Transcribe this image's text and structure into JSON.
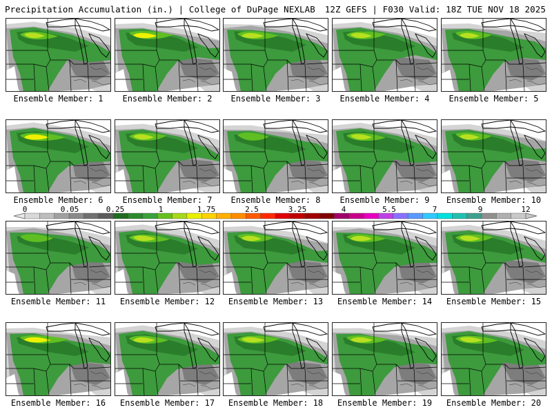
{
  "header": {
    "title": "Precipitation Accumulation (in.) | College of DuPage NEXLAB",
    "run_info": "12Z GEFS | F030 Valid: 18Z TUE NOV 18 2025"
  },
  "members": [
    {
      "label": "Ensemble Member: 1",
      "intensity": 0.55
    },
    {
      "label": "Ensemble Member: 2",
      "intensity": 0.75
    },
    {
      "label": "Ensemble Member: 3",
      "intensity": 0.65
    },
    {
      "label": "Ensemble Member: 4",
      "intensity": 0.6
    },
    {
      "label": "Ensemble Member: 5",
      "intensity": 0.5
    },
    {
      "label": "Ensemble Member: 6",
      "intensity": 0.8
    },
    {
      "label": "Ensemble Member: 7",
      "intensity": 0.55
    },
    {
      "label": "Ensemble Member: 8",
      "intensity": 0.35
    },
    {
      "label": "Ensemble Member: 9",
      "intensity": 0.6
    },
    {
      "label": "Ensemble Member: 10",
      "intensity": 0.5
    },
    {
      "label": "Ensemble Member: 11",
      "intensity": 0.4
    },
    {
      "label": "Ensemble Member: 12",
      "intensity": 0.65
    },
    {
      "label": "Ensemble Member: 13",
      "intensity": 0.5
    },
    {
      "label": "Ensemble Member: 14",
      "intensity": 0.6
    },
    {
      "label": "Ensemble Member: 15",
      "intensity": 0.55
    },
    {
      "label": "Ensemble Member: 16",
      "intensity": 0.9
    },
    {
      "label": "Ensemble Member: 17",
      "intensity": 0.6
    },
    {
      "label": "Ensemble Member: 18",
      "intensity": 0.7
    },
    {
      "label": "Ensemble Member: 19",
      "intensity": 0.65
    },
    {
      "label": "Ensemble Member: 20",
      "intensity": 0.7
    }
  ],
  "colorbar": {
    "labels": [
      "0",
      "0.05",
      "0.25",
      "1",
      "1.75",
      "2.5",
      "3.25",
      "4",
      "5.5",
      "7",
      "9",
      "12"
    ],
    "colors": [
      "#d9d9d9",
      "#bdbdbd",
      "#a0a0a0",
      "#8a8a8a",
      "#707070",
      "#5c5c5c",
      "#1f6b1f",
      "#2b8a2b",
      "#3ca03c",
      "#66c01e",
      "#a8d81a",
      "#e8f000",
      "#ffd200",
      "#ffb000",
      "#ff8c00",
      "#ff5a00",
      "#ff2a00",
      "#e00000",
      "#c00000",
      "#a00000",
      "#800000",
      "#a0006a",
      "#c8008c",
      "#e800c0",
      "#c040e8",
      "#8a70ff",
      "#5a9aff",
      "#30c8ff",
      "#00e0e0",
      "#20c0b0",
      "#40a090",
      "#909090",
      "#b0b0b0",
      "#c8c8c8"
    ]
  },
  "map_colors": {
    "gray_light": "#d4d4d4",
    "gray_mid": "#a6a6a6",
    "gray_dark": "#7d7d7d",
    "green_dark": "#2a7d2a",
    "green": "#3d9a3d",
    "green_light": "#5fbf22",
    "yellow_green": "#b8e020",
    "yellow": "#eef000",
    "borders": "#000000"
  }
}
